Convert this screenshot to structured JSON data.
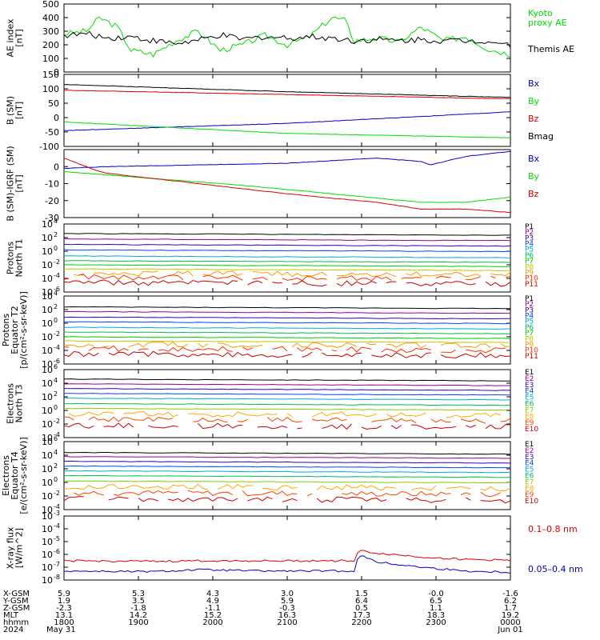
{
  "colors": {
    "black": "#000000",
    "green": "#00dd00",
    "red": "#dd0000",
    "blue": "#0000cc",
    "p": [
      "#000000",
      "#990099",
      "#3300bb",
      "#0044ff",
      "#00aadd",
      "#00bb55",
      "#00cc00",
      "#bbcc00",
      "#ff9900",
      "#ff3300",
      "#cc0000"
    ],
    "e": [
      "#000000",
      "#990099",
      "#3300bb",
      "#0044ff",
      "#00aadd",
      "#00bb55",
      "#88cc00",
      "#ffaa00",
      "#ff4400",
      "#cc0000"
    ]
  },
  "chart_data": [
    {
      "type": "line",
      "ylabel": "AE index\n[nT]",
      "ylim": [
        0,
        500
      ],
      "yticks": [
        "500",
        "400",
        "300",
        "200",
        "100",
        "0"
      ],
      "tick_values": [
        500,
        400,
        300,
        200,
        100,
        0
      ],
      "series": [
        {
          "name": "Kyoto\nproxy AE",
          "color": "#00dd00",
          "x": [
            0,
            0.05,
            0.08,
            0.12,
            0.15,
            0.2,
            0.25,
            0.3,
            0.35,
            0.4,
            0.45,
            0.5,
            0.55,
            0.6,
            0.63,
            0.65,
            0.7,
            0.75,
            0.8,
            0.85,
            0.9,
            0.95,
            1.0
          ],
          "values": [
            280,
            300,
            400,
            330,
            160,
            130,
            230,
            300,
            160,
            200,
            270,
            200,
            260,
            400,
            380,
            230,
            250,
            220,
            330,
            230,
            260,
            170,
            130
          ]
        },
        {
          "name": "Themis AE",
          "color": "#000000",
          "x": [
            0,
            0.05,
            0.1,
            0.15,
            0.2,
            0.25,
            0.3,
            0.35,
            0.4,
            0.45,
            0.5,
            0.55,
            0.6,
            0.65,
            0.7,
            0.75,
            0.8,
            0.85,
            0.9,
            0.95,
            1.0
          ],
          "values": [
            270,
            280,
            250,
            260,
            230,
            210,
            230,
            270,
            240,
            260,
            250,
            260,
            250,
            230,
            240,
            230,
            240,
            230,
            230,
            230,
            200
          ]
        }
      ]
    },
    {
      "type": "line",
      "ylabel": "B (SM)\n[nT]",
      "ylim": [
        -100,
        150
      ],
      "yticks": [
        "150",
        "100",
        "50",
        "0",
        "-50",
        "-100"
      ],
      "tick_values": [
        150,
        100,
        50,
        0,
        -50,
        -100
      ],
      "series": [
        {
          "name": "Bx",
          "color": "#0000cc",
          "x": [
            0,
            0.5,
            1
          ],
          "values": [
            -45,
            -20,
            20
          ]
        },
        {
          "name": "By",
          "color": "#00dd00",
          "x": [
            0,
            0.5,
            1
          ],
          "values": [
            -15,
            -55,
            -70
          ]
        },
        {
          "name": "Bz",
          "color": "#dd0000",
          "x": [
            0,
            0.5,
            1
          ],
          "values": [
            95,
            80,
            65
          ]
        },
        {
          "name": "Bmag",
          "color": "#000000",
          "x": [
            0,
            0.5,
            1
          ],
          "values": [
            115,
            90,
            70
          ]
        }
      ]
    },
    {
      "type": "line",
      "ylabel": "B (SM)-IGRF (SM)\n[nT]",
      "ylim": [
        -30,
        10
      ],
      "yticks": [
        "0",
        "-10",
        "-20",
        "-30"
      ],
      "tick_values": [
        0,
        -10,
        -20,
        -30
      ],
      "series": [
        {
          "name": "Bx",
          "color": "#0000cc",
          "x": [
            0,
            0.1,
            0.3,
            0.5,
            0.7,
            0.8,
            0.82,
            0.9,
            1
          ],
          "values": [
            -1,
            0,
            1,
            2,
            5,
            3,
            1,
            6,
            9
          ]
        },
        {
          "name": "By",
          "color": "#00dd00",
          "x": [
            0,
            0.2,
            0.4,
            0.6,
            0.8,
            0.9,
            1
          ],
          "values": [
            -3,
            -7,
            -11,
            -16,
            -21,
            -21,
            -18
          ]
        },
        {
          "name": "Bz",
          "color": "#dd0000",
          "x": [
            0,
            0.08,
            0.1,
            0.3,
            0.5,
            0.7,
            0.8,
            0.9,
            1
          ],
          "values": [
            5,
            -3,
            -4,
            -10,
            -16,
            -21,
            -25,
            -25,
            -27
          ]
        }
      ]
    },
    {
      "type": "line",
      "log": true,
      "ylabel": "Protons\nNorth T1",
      "ylim": [
        -6,
        4
      ],
      "yticks": [
        "10",
        "10",
        "10",
        "10",
        "10",
        "10"
      ],
      "exps": [
        "4",
        "2",
        "0",
        "-2",
        "-4",
        "-6"
      ],
      "tick_values": [
        4,
        2,
        0,
        -2,
        -4,
        -6
      ],
      "series_names": [
        "P1",
        "P2",
        "P3",
        "P4",
        "P5",
        "P6",
        "P7",
        "P8",
        "P9",
        "P10",
        "P11"
      ],
      "levels": [
        2.6,
        1.8,
        1.0,
        0.2,
        -0.7,
        -1.4,
        -2.0,
        -2.6,
        -3.2,
        -3.8,
        -4.6
      ]
    },
    {
      "type": "line",
      "log": true,
      "ylabel": "Protons\nEquator T2\n[p/(cm²-s-sr-keV)]",
      "ylim": [
        -6,
        4
      ],
      "yticks": [
        "10",
        "10",
        "10",
        "10",
        "10",
        "10"
      ],
      "exps": [
        "4",
        "2",
        "0",
        "-2",
        "-4",
        "-6"
      ],
      "tick_values": [
        4,
        2,
        0,
        -2,
        -4,
        -6
      ],
      "series_names": [
        "P1",
        "P2",
        "P3",
        "P4",
        "P5",
        "P6",
        "P7",
        "P8",
        "P9",
        "P10",
        "P11"
      ],
      "levels": [
        2.4,
        1.7,
        0.9,
        0.2,
        -0.6,
        -1.3,
        -2.0,
        -2.6,
        -3.1,
        -3.7,
        -4.5
      ]
    },
    {
      "type": "line",
      "log": true,
      "ylabel": "Electrons\nNorth T3",
      "ylim": [
        -4,
        6
      ],
      "yticks": [
        "10",
        "10",
        "10",
        "10",
        "10",
        "10"
      ],
      "exps": [
        "6",
        "4",
        "2",
        "0",
        "-2",
        "-4"
      ],
      "tick_values": [
        6,
        4,
        2,
        0,
        -2,
        -4
      ],
      "series_names": [
        "E1",
        "E2",
        "E3",
        "E4",
        "E5",
        "E6",
        "E7",
        "E8",
        "E9",
        "E10"
      ],
      "levels": [
        4.6,
        3.9,
        3.2,
        2.5,
        1.8,
        1.0,
        0.3,
        -0.5,
        -1.3,
        -2.2
      ]
    },
    {
      "type": "line",
      "log": true,
      "ylabel": "Electrons\nEquator T4\n[e/(cm²-s-sr-keV)]",
      "ylim": [
        -4,
        6
      ],
      "yticks": [
        "10",
        "10",
        "10",
        "10",
        "10",
        "10"
      ],
      "exps": [
        "6",
        "4",
        "2",
        "0",
        "-2",
        "-4"
      ],
      "tick_values": [
        6,
        4,
        2,
        0,
        -2,
        -4
      ],
      "series_names": [
        "E1",
        "E2",
        "E3",
        "E4",
        "E5",
        "E6",
        "E7",
        "E8",
        "E9",
        "E10"
      ],
      "levels": [
        4.4,
        3.8,
        3.1,
        2.4,
        1.7,
        1.0,
        0.2,
        -0.6,
        -1.5,
        -2.4
      ]
    },
    {
      "type": "line",
      "log": true,
      "ylabel": "X-ray flux\n[W/m^2]",
      "ylim": [
        -8,
        -3
      ],
      "yticks": [
        "10",
        "10",
        "10",
        "10",
        "10",
        "10"
      ],
      "exps": [
        "-3",
        "-4",
        "-5",
        "-6",
        "-7",
        "-8"
      ],
      "tick_values": [
        -3,
        -4,
        -5,
        -6,
        -7,
        -8
      ],
      "series": [
        {
          "name": "0.1–0.8 nm",
          "color": "#dd0000",
          "x": [
            0,
            0.2,
            0.3,
            0.5,
            0.65,
            0.66,
            0.7,
            0.8,
            0.9,
            1
          ],
          "values": [
            -6.5,
            -6.55,
            -6.5,
            -6.5,
            -6.5,
            -5.7,
            -5.9,
            -6.2,
            -6.4,
            -6.45
          ]
        },
        {
          "name": "0.05–0.4 nm",
          "color": "#0000cc",
          "x": [
            0,
            0.2,
            0.3,
            0.45,
            0.55,
            0.65,
            0.66,
            0.7,
            0.8,
            0.9,
            1
          ],
          "values": [
            -7.3,
            -7.35,
            -7.2,
            -7.3,
            -7.3,
            -7.3,
            -6.0,
            -6.6,
            -7.0,
            -7.3,
            -7.4
          ]
        }
      ]
    }
  ],
  "axis": {
    "rows": [
      {
        "label": "X-GSM",
        "values": [
          "5.9",
          "5.3",
          "4.3",
          "3.0",
          "1.5",
          "-0.0",
          "-1.6"
        ]
      },
      {
        "label": "Y-GSM",
        "values": [
          "1.9",
          "3.5",
          "4.9",
          "5.9",
          "6.4",
          "6.5",
          "6.2"
        ]
      },
      {
        "label": "Z-GSM",
        "values": [
          "-2.3",
          "-1.8",
          "-1.1",
          "-0.3",
          "0.5",
          "1.1",
          "1.7"
        ]
      },
      {
        "label": "MLT",
        "values": [
          "13.1",
          "14.2",
          "15.2",
          "16.3",
          "17.3",
          "18.3",
          "19.2"
        ]
      },
      {
        "label": "hhmm",
        "values": [
          "1800",
          "1900",
          "2000",
          "2100",
          "2200",
          "2300",
          "0000"
        ]
      }
    ],
    "year": "2024",
    "date_start": "May 31",
    "date_end": "Jun 01"
  }
}
